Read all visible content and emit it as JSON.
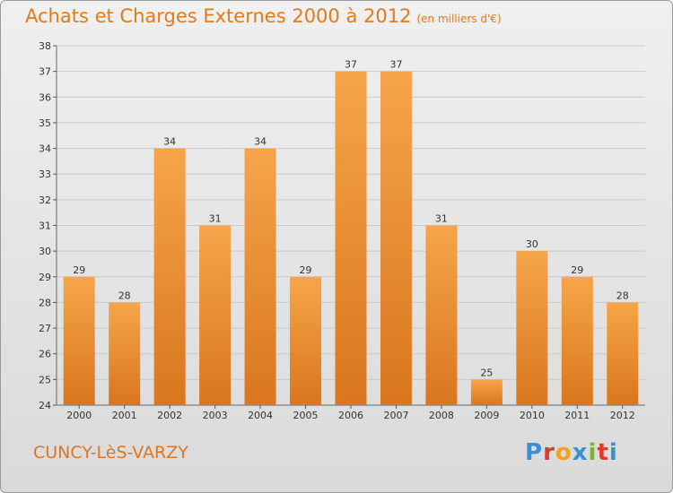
{
  "title": "Achats et Charges Externes 2000 à 2012",
  "subtitle": "(en milliers d'€)",
  "town": "CUNCY-LèS-VARZY",
  "logo": "Proxiti",
  "logo_colors": [
    "#3a8fd8",
    "#e8352a",
    "#f2a31b",
    "#3a8fd8",
    "#7ab52e",
    "#e8352a",
    "#3a8fd8"
  ],
  "colors": {
    "bar_top": "#f6a54a",
    "bar_bottom": "#d9761e",
    "title": "#e07b1c",
    "grid": "#c8c8c8"
  },
  "chart_data": {
    "type": "bar",
    "title": "Achats et Charges Externes 2000 à 2012",
    "subtitle": "(en milliers d'€)",
    "xlabel": "",
    "ylabel": "",
    "categories": [
      "2000",
      "2001",
      "2002",
      "2003",
      "2004",
      "2005",
      "2006",
      "2007",
      "2008",
      "2009",
      "2010",
      "2011",
      "2012"
    ],
    "values": [
      29,
      28,
      34,
      31,
      34,
      29,
      37,
      37,
      31,
      25,
      30,
      29,
      28
    ],
    "ylim": [
      24,
      38
    ],
    "yticks": [
      24,
      25,
      26,
      27,
      28,
      29,
      30,
      31,
      32,
      33,
      34,
      35,
      36,
      37,
      38
    ],
    "grid": true,
    "data_labels": true
  }
}
